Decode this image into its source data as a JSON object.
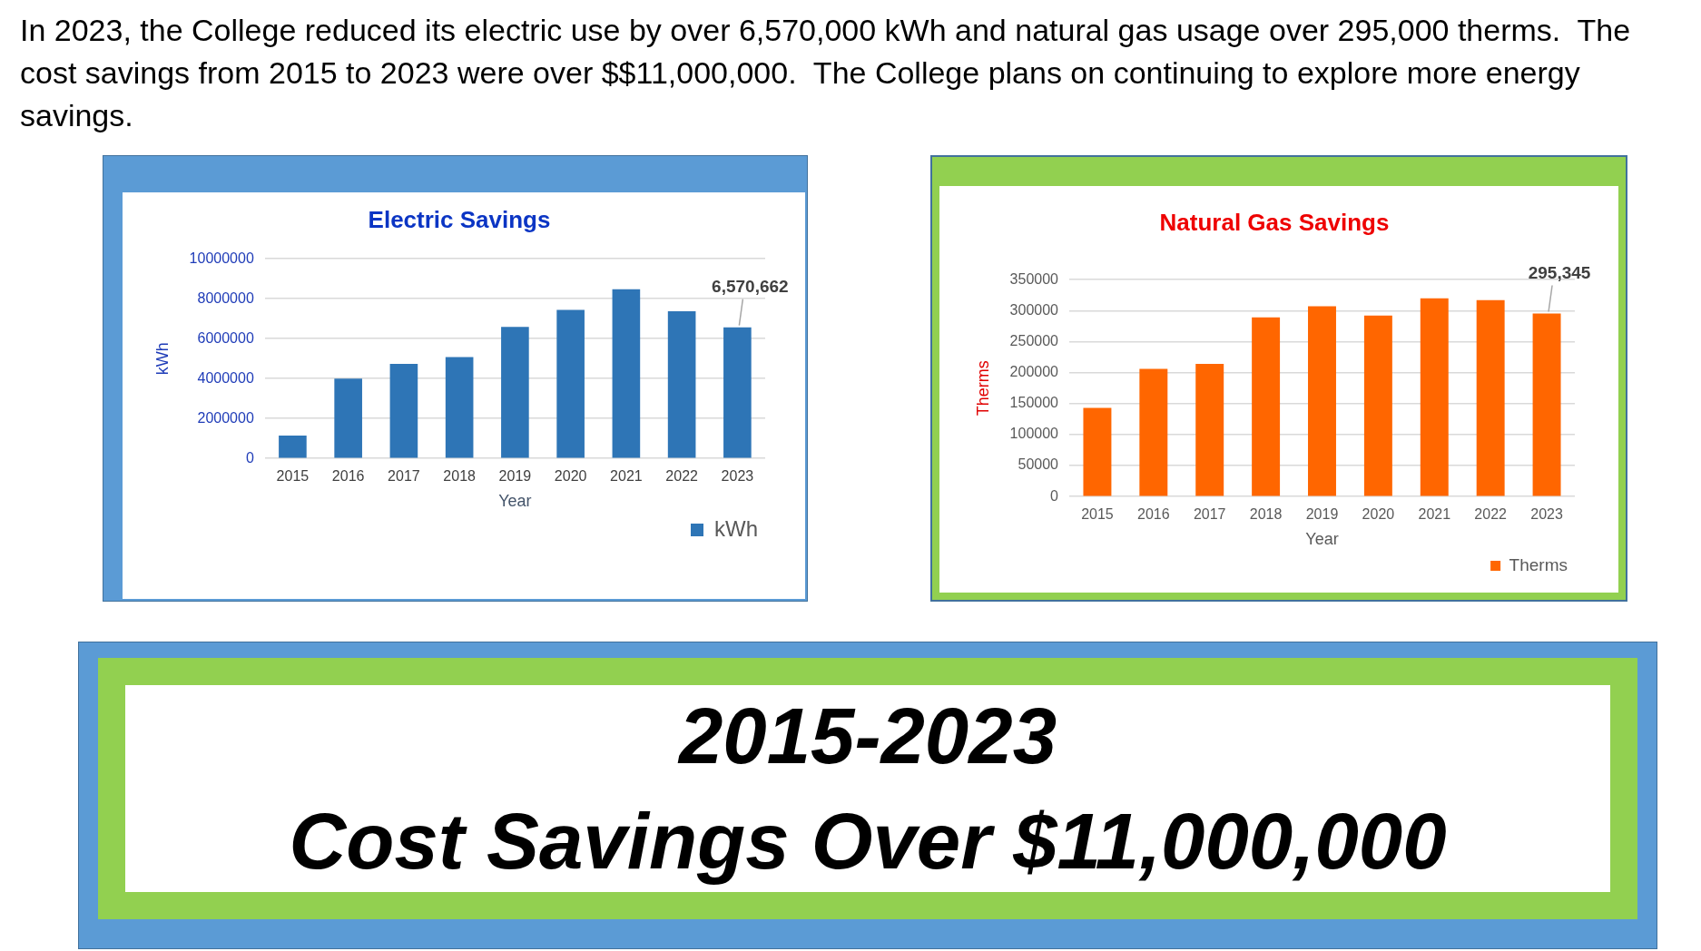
{
  "chart_data": [
    {
      "type": "other",
      "annotations": [
        "In 2023, the College reduced its electric use by over 6,570,000 kWh and natural gas usage over 295,000 therms.  The cost savings from 2015 to 2023 were over $$11,000,000.  The College plans on continuing to explore more energy savings."
      ]
    },
    {
      "type": "bar",
      "title": "Electric Savings",
      "xlabel": "Year",
      "ylabel": "kWh",
      "categories": [
        "2015",
        "2016",
        "2017",
        "2018",
        "2019",
        "2020",
        "2021",
        "2022",
        "2023"
      ],
      "series": [
        {
          "name": "kWh",
          "color": "#2e75b6",
          "values": [
            1150000,
            4000000,
            4740000,
            5080000,
            6590000,
            7440000,
            8470000,
            7370000,
            6570662
          ],
          "value_labels": [
            null,
            null,
            null,
            null,
            null,
            null,
            null,
            null,
            "6,570,662"
          ]
        }
      ],
      "ylim": [
        0,
        10000000
      ],
      "yticks": [
        0,
        2000000,
        4000000,
        6000000,
        8000000,
        10000000
      ],
      "grid": "y",
      "legend": "bottom right"
    },
    {
      "type": "bar",
      "title": "Natural Gas Savings",
      "xlabel": "Year",
      "ylabel": "Therms",
      "categories": [
        "2015",
        "2016",
        "2017",
        "2018",
        "2019",
        "2020",
        "2021",
        "2022",
        "2023"
      ],
      "series": [
        {
          "name": "Therms",
          "color": "#ff6600",
          "values": [
            143000,
            206000,
            214000,
            289000,
            307000,
            292000,
            320000,
            317000,
            295345
          ],
          "value_labels": [
            null,
            null,
            null,
            null,
            null,
            null,
            null,
            null,
            "295,345"
          ]
        }
      ],
      "ylim": [
        0,
        350000
      ],
      "yticks": [
        0,
        50000,
        100000,
        150000,
        200000,
        250000,
        300000,
        350000
      ],
      "grid": "y",
      "legend": "bottom right"
    },
    {
      "type": "other",
      "annotations": [
        "2015-2023",
        "Cost Savings Over $11,000,000"
      ]
    }
  ]
}
